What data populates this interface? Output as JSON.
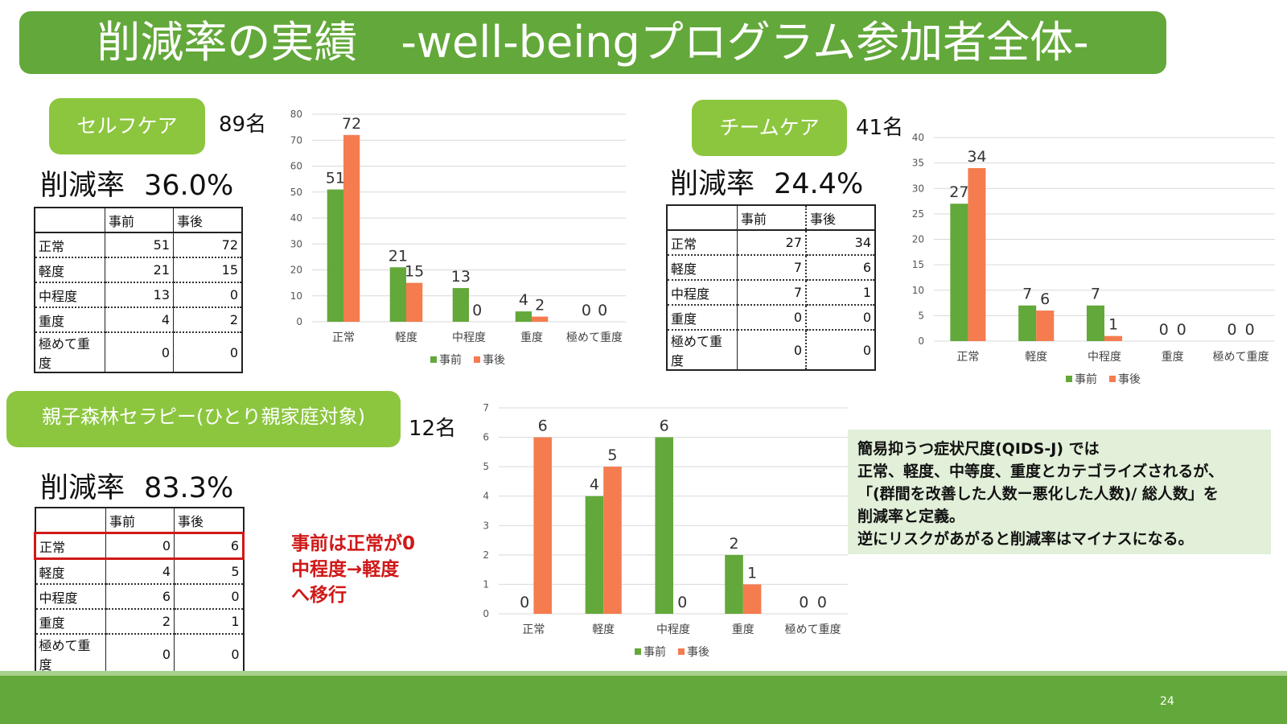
{
  "slide": {
    "title": "削減率の実績　-well-beingプログラム参加者全体-",
    "page_number": "24",
    "colors": {
      "title_bar": "#63a83a",
      "pill": "#8cc63f",
      "before": "#63a83a",
      "after": "#f47c4f"
    }
  },
  "self_care": {
    "label": "セルフケア",
    "count": "89名",
    "rate_label": "削減率",
    "rate_value": "36.0%",
    "table": {
      "headers": [
        "",
        "事前",
        "事後"
      ],
      "rows": [
        [
          "正常",
          "51",
          "72"
        ],
        [
          "軽度",
          "21",
          "15"
        ],
        [
          "中程度",
          "13",
          "0"
        ],
        [
          "重度",
          "4",
          "2"
        ],
        [
          "極めて重度",
          "0",
          "0"
        ]
      ]
    }
  },
  "team_care": {
    "label": "チームケア",
    "count": "41名",
    "rate_label": "削減率",
    "rate_value": "24.4%",
    "table": {
      "headers": [
        "",
        "事前",
        "事後"
      ],
      "rows": [
        [
          "正常",
          "27",
          "34"
        ],
        [
          "軽度",
          "7",
          "6"
        ],
        [
          "中程度",
          "7",
          "1"
        ],
        [
          "重度",
          "0",
          "0"
        ],
        [
          "極めて重度",
          "0",
          "0"
        ]
      ]
    }
  },
  "forest": {
    "label": "親子森林セラピー(ひとり親家庭対象)",
    "count": "12名",
    "rate_label": "削減率",
    "rate_value": "83.3%",
    "table": {
      "headers": [
        "",
        "事前",
        "事後"
      ],
      "rows": [
        [
          "正常",
          "0",
          "6"
        ],
        [
          "軽度",
          "4",
          "5"
        ],
        [
          "中程度",
          "6",
          "0"
        ],
        [
          "重度",
          "2",
          "1"
        ],
        [
          "極めて重度",
          "0",
          "0"
        ]
      ]
    },
    "note_lines": [
      "事前は正常が0",
      "中程度→軽度",
      "へ移行"
    ]
  },
  "explanation": {
    "lines": [
      "簡易抑うつ症状尺度(QIDS-J) では",
      "正常、軽度、中等度、重度とカテゴライズされるが、",
      "「(群間を改善した人数ー悪化した人数)/ 総人数」を",
      "削減率と定義。",
      "逆にリスクがあがると削減率はマイナスになる。"
    ]
  },
  "chart_data": [
    {
      "id": "self-care-chart",
      "type": "bar",
      "categories": [
        "正常",
        "軽度",
        "中程度",
        "重度",
        "極めて重度"
      ],
      "series": [
        {
          "name": "事前",
          "values": [
            51,
            21,
            13,
            4,
            0
          ]
        },
        {
          "name": "事後",
          "values": [
            72,
            15,
            0,
            2,
            0
          ]
        }
      ],
      "ylim": [
        0,
        80
      ],
      "yticks": [
        0,
        10,
        20,
        30,
        40,
        50,
        60,
        70,
        80
      ],
      "legend": "bottom",
      "grid": true
    },
    {
      "id": "team-care-chart",
      "type": "bar",
      "categories": [
        "正常",
        "軽度",
        "中程度",
        "重度",
        "極めて重度"
      ],
      "series": [
        {
          "name": "事前",
          "values": [
            27,
            7,
            7,
            0,
            0
          ]
        },
        {
          "name": "事後",
          "values": [
            34,
            6,
            1,
            0,
            0
          ]
        }
      ],
      "ylim": [
        0,
        40
      ],
      "yticks": [
        0,
        5,
        10,
        15,
        20,
        25,
        30,
        35,
        40
      ],
      "legend": "bottom",
      "grid": true
    },
    {
      "id": "forest-chart",
      "type": "bar",
      "categories": [
        "正常",
        "軽度",
        "中程度",
        "重度",
        "極めて重度"
      ],
      "series": [
        {
          "name": "事前",
          "values": [
            0,
            4,
            6,
            2,
            0
          ]
        },
        {
          "name": "事後",
          "values": [
            6,
            5,
            0,
            1,
            0
          ]
        }
      ],
      "ylim": [
        0,
        7
      ],
      "yticks": [
        0,
        1,
        2,
        3,
        4,
        5,
        6,
        7
      ],
      "legend": "bottom",
      "grid": true
    }
  ]
}
